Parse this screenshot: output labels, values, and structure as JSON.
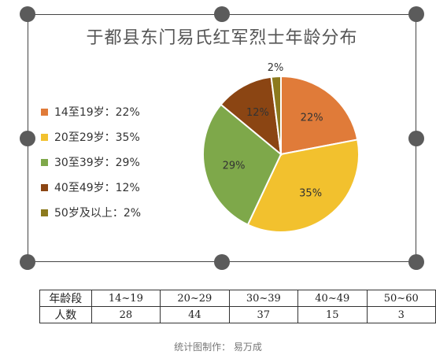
{
  "chart_data": {
    "type": "pie",
    "title": "于都县东门易氏红军烈士年龄分布",
    "legend_position": "left",
    "slices": [
      {
        "name": "14至19岁",
        "value": 22,
        "label": "22%",
        "legend": "14至19岁：22%",
        "color": "#E07B39"
      },
      {
        "name": "20至29岁",
        "value": 35,
        "label": "35%",
        "legend": "20至29岁：35%",
        "color": "#F2C12E"
      },
      {
        "name": "30至39岁",
        "value": 29,
        "label": "29%",
        "legend": "30至39岁：29%",
        "color": "#7EA84A"
      },
      {
        "name": "40至49岁",
        "value": 12,
        "label": "12%",
        "legend": "40至49岁：12%",
        "color": "#8B4513"
      },
      {
        "name": "50岁及以上",
        "value": 2,
        "label": "2%",
        "legend": "50岁及以上：2%",
        "color": "#8C7A1E"
      }
    ]
  },
  "table": {
    "row_headers": [
      "年龄段",
      "人数"
    ],
    "age_groups": [
      "14~19",
      "20~29",
      "30~39",
      "40~49",
      "50~60"
    ],
    "counts": [
      "28",
      "44",
      "37",
      "15",
      "3"
    ]
  },
  "credit": "统计图制作：  易万成"
}
